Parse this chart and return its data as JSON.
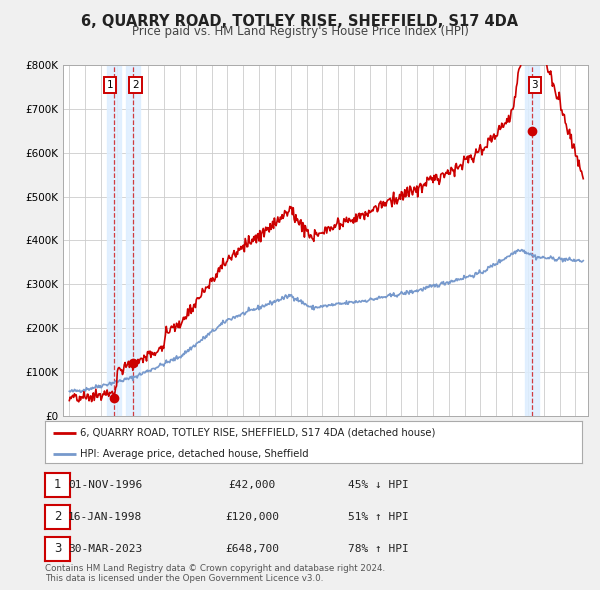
{
  "title": "6, QUARRY ROAD, TOTLEY RISE, SHEFFIELD, S17 4DA",
  "subtitle": "Price paid vs. HM Land Registry's House Price Index (HPI)",
  "ylim": [
    0,
    800000
  ],
  "yticks": [
    0,
    100000,
    200000,
    300000,
    400000,
    500000,
    600000,
    700000,
    800000
  ],
  "ytick_labels": [
    "£0",
    "£100K",
    "£200K",
    "£300K",
    "£400K",
    "£500K",
    "£600K",
    "£700K",
    "£800K"
  ],
  "xlim_start": 1993.6,
  "xlim_end": 2026.8,
  "background_color": "#f0f0f0",
  "plot_bg_color": "#ffffff",
  "grid_color": "#cccccc",
  "red_line_color": "#cc0000",
  "blue_line_color": "#7799cc",
  "highlight_color": "#e8f0ff",
  "legend_label_red": "6, QUARRY ROAD, TOTLEY RISE, SHEFFIELD, S17 4DA (detached house)",
  "legend_label_blue": "HPI: Average price, detached house, Sheffield",
  "transactions": [
    {
      "num": 1,
      "date_decimal": 1996.833,
      "price": 42000,
      "date_str": "01-NOV-1996",
      "price_str": "£42,000",
      "hpi_str": "45% ↓ HPI"
    },
    {
      "num": 2,
      "date_decimal": 1998.04,
      "price": 120000,
      "date_str": "16-JAN-1998",
      "price_str": "£120,000",
      "hpi_str": "51% ↑ HPI"
    },
    {
      "num": 3,
      "date_decimal": 2023.24,
      "price": 648700,
      "date_str": "30-MAR-2023",
      "price_str": "£648,700",
      "hpi_str": "78% ↑ HPI"
    }
  ],
  "footnote": "Contains HM Land Registry data © Crown copyright and database right 2024.\nThis data is licensed under the Open Government Licence v3.0."
}
